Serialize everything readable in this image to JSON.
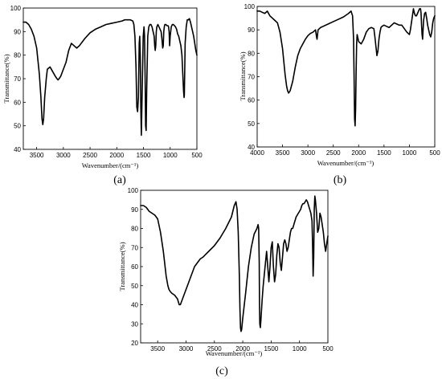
{
  "chart_data": [
    {
      "type": "line",
      "panel_label": "(a)",
      "xlabel": "Wavenumber/(cm⁻¹)",
      "ylabel": "Transmittance(%)",
      "xlim": [
        3750,
        500
      ],
      "ylim": [
        40,
        100
      ],
      "xticks": [
        3500,
        3000,
        2500,
        2000,
        1500,
        1000,
        500
      ],
      "yticks": [
        40,
        50,
        60,
        70,
        80,
        90,
        100
      ],
      "grid": false,
      "series": [
        {
          "x": [
            3750,
            3700,
            3650,
            3600,
            3550,
            3500,
            3450,
            3420,
            3400,
            3385,
            3370,
            3350,
            3320,
            3300,
            3250,
            3200,
            3150,
            3120,
            3100,
            3080,
            3050,
            3000,
            2950,
            2900,
            2850,
            2800,
            2750,
            2700,
            2600,
            2500,
            2400,
            2300,
            2200,
            2100,
            2000,
            1900,
            1850,
            1800,
            1750,
            1700,
            1680,
            1660,
            1640,
            1625,
            1610,
            1595,
            1580,
            1570,
            1560,
            1550,
            1540,
            1520,
            1505,
            1490,
            1480,
            1470,
            1460,
            1450,
            1440,
            1420,
            1400,
            1380,
            1360,
            1340,
            1320,
            1300,
            1290,
            1280,
            1270,
            1260,
            1250,
            1230,
            1210,
            1190,
            1170,
            1155,
            1140,
            1130,
            1120,
            1110,
            1100,
            1080,
            1060,
            1040,
            1030,
            1020,
            1010,
            1000,
            980,
            960,
            940,
            920,
            900,
            880,
            860,
            840,
            820,
            800,
            780,
            760,
            750,
            740,
            735,
            730,
            720,
            700,
            680,
            660,
            640,
            620,
            600,
            580,
            560,
            540,
            520,
            500
          ],
          "y": [
            94,
            94,
            93,
            91,
            88,
            83,
            72,
            62,
            53,
            50.5,
            53,
            62,
            70,
            74,
            75,
            73,
            71,
            70,
            69.5,
            70,
            71,
            74,
            77,
            82,
            85,
            84,
            83,
            84,
            87,
            89.5,
            91,
            92,
            93,
            93.5,
            94,
            94.5,
            95,
            95,
            95,
            94.5,
            93,
            88,
            75,
            58,
            56,
            62,
            85,
            88,
            80,
            58,
            46,
            70,
            88,
            92,
            88,
            72,
            50,
            48,
            65,
            88,
            92,
            93,
            93,
            92,
            90,
            88,
            84,
            82,
            84,
            90,
            92,
            93,
            92,
            91,
            90,
            87,
            83,
            84,
            90,
            92,
            93,
            93,
            92.5,
            92.5,
            92,
            90,
            84,
            88,
            92,
            93,
            93,
            92.5,
            92,
            91,
            89,
            88,
            86,
            84,
            80,
            70,
            65,
            62,
            63,
            70,
            85,
            92,
            95,
            95,
            95.5,
            94,
            92,
            90,
            88,
            85,
            82,
            80
          ]
        }
      ]
    },
    {
      "type": "line",
      "panel_label": "(b)",
      "xlabel": "Wavenumber/(cm⁻¹)",
      "ylabel": "Transmittance(%)",
      "xlim": [
        4000,
        500
      ],
      "ylim": [
        40,
        100
      ],
      "xticks": [
        4000,
        3500,
        3000,
        2500,
        2000,
        1500,
        1000,
        500
      ],
      "yticks": [
        40,
        50,
        60,
        70,
        80,
        90,
        100
      ],
      "grid": false,
      "series": [
        {
          "x": [
            4000,
            3950,
            3900,
            3850,
            3800,
            3750,
            3700,
            3650,
            3600,
            3550,
            3500,
            3450,
            3420,
            3400,
            3380,
            3350,
            3300,
            3250,
            3200,
            3150,
            3100,
            3050,
            3000,
            2950,
            2900,
            2850,
            2830,
            2820,
            2810,
            2800,
            2750,
            2700,
            2600,
            2500,
            2400,
            2300,
            2200,
            2150,
            2120,
            2100,
            2090,
            2080,
            2070,
            2060,
            2050,
            2040,
            2030,
            2000,
            1950,
            1900,
            1850,
            1800,
            1750,
            1700,
            1680,
            1660,
            1640,
            1620,
            1600,
            1580,
            1560,
            1540,
            1500,
            1450,
            1400,
            1350,
            1300,
            1250,
            1200,
            1150,
            1100,
            1050,
            1000,
            980,
            960,
            940,
            920,
            900,
            880,
            860,
            840,
            820,
            800,
            780,
            770,
            760,
            750,
            740,
            720,
            700,
            680,
            660,
            640,
            620,
            600,
            580,
            560,
            540,
            520,
            500
          ],
          "y": [
            98,
            98,
            97.5,
            97,
            98,
            96,
            95,
            94,
            93,
            89,
            82,
            71,
            66,
            64,
            63,
            64,
            68,
            74,
            79,
            82,
            84,
            86,
            87.5,
            88.5,
            89,
            90,
            87,
            86,
            88,
            90,
            91,
            91.5,
            92.5,
            93.5,
            94.5,
            95.5,
            97,
            98,
            96,
            86,
            70,
            52,
            49,
            56,
            72,
            84,
            88,
            85,
            84,
            86,
            89,
            90.5,
            91,
            90.5,
            87,
            83,
            79,
            81,
            86,
            89,
            91,
            91.5,
            92,
            91.5,
            91,
            92,
            93,
            92.5,
            92,
            92,
            90.5,
            89,
            88,
            90,
            93,
            96,
            99,
            97,
            96,
            96,
            97,
            98,
            99,
            99,
            97,
            92,
            88,
            86,
            94,
            97,
            97.5,
            95,
            92,
            90,
            88,
            87,
            89,
            93,
            95,
            96
          ]
        }
      ]
    },
    {
      "type": "line",
      "panel_label": "(c)",
      "xlabel": "Wavenumber/(cm⁻¹)",
      "ylabel": "Transmittance(%)",
      "xlim": [
        3800,
        500
      ],
      "ylim": [
        20,
        100
      ],
      "xticks": [
        3500,
        3000,
        2500,
        2000,
        1500,
        1000,
        500
      ],
      "yticks": [
        20,
        30,
        40,
        50,
        60,
        70,
        80,
        90,
        100
      ],
      "grid": false,
      "series": [
        {
          "x": [
            3800,
            3750,
            3700,
            3650,
            3600,
            3550,
            3500,
            3450,
            3400,
            3350,
            3320,
            3300,
            3280,
            3250,
            3200,
            3150,
            3120,
            3100,
            3050,
            3000,
            2950,
            2900,
            2850,
            2800,
            2750,
            2700,
            2600,
            2500,
            2400,
            2300,
            2200,
            2150,
            2120,
            2100,
            2080,
            2060,
            2050,
            2040,
            2030,
            2020,
            2000,
            1950,
            1900,
            1850,
            1800,
            1750,
            1730,
            1720,
            1710,
            1705,
            1700,
            1690,
            1680,
            1660,
            1640,
            1620,
            1600,
            1580,
            1560,
            1540,
            1520,
            1500,
            1480,
            1460,
            1440,
            1420,
            1400,
            1380,
            1360,
            1340,
            1320,
            1300,
            1280,
            1260,
            1240,
            1220,
            1200,
            1180,
            1160,
            1140,
            1120,
            1100,
            1080,
            1060,
            1040,
            1020,
            1000,
            980,
            960,
            940,
            920,
            900,
            880,
            860,
            840,
            820,
            800,
            780,
            770,
            760,
            750,
            740,
            730,
            720,
            700,
            680,
            660,
            640,
            620,
            600,
            580,
            560,
            540,
            520,
            500
          ],
          "y": [
            92,
            92,
            91,
            89,
            88,
            87,
            85,
            78,
            68,
            55,
            50,
            48,
            47,
            46,
            45,
            43,
            40,
            40,
            44,
            48,
            52,
            56,
            60,
            62,
            64,
            65,
            68,
            71,
            75,
            80,
            86,
            92,
            94,
            90,
            78,
            55,
            38,
            28,
            26,
            27,
            33,
            46,
            60,
            70,
            77,
            80,
            82,
            80,
            62,
            40,
            30,
            28,
            32,
            42,
            50,
            56,
            62,
            68,
            60,
            52,
            60,
            70,
            73,
            60,
            52,
            56,
            66,
            72,
            70,
            62,
            58,
            65,
            72,
            74,
            72,
            68,
            70,
            74,
            78,
            80,
            80,
            82,
            84,
            86,
            87,
            88,
            89,
            90,
            92,
            93,
            93,
            94,
            95,
            94,
            92,
            90,
            88,
            84,
            72,
            55,
            65,
            90,
            97,
            95,
            88,
            78,
            80,
            88,
            86,
            82,
            78,
            72,
            68,
            72,
            76
          ]
        }
      ]
    }
  ]
}
